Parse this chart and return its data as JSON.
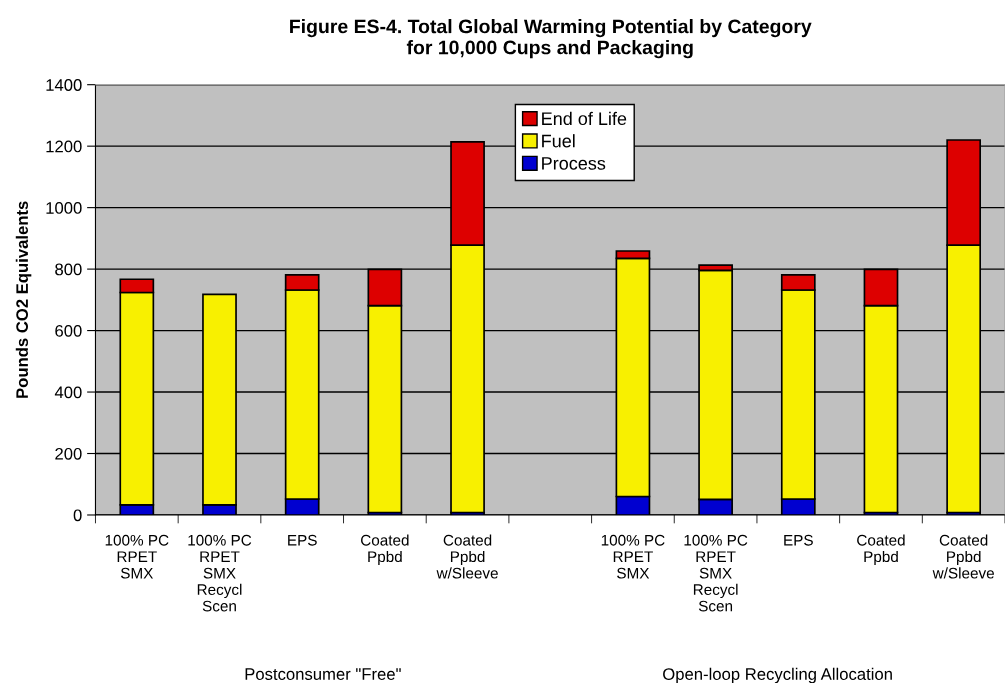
{
  "chart_data": {
    "type": "bar",
    "stacked": true,
    "title": "Figure ES-4. Total Global Warming Potential by Category\nfor 10,000 Cups and Packaging",
    "ylabel": "Pounds CO2 Equivalents",
    "categories": [
      "100% PC\nRPET\nSMX",
      "100% PC\nRPET\nSMX\nRecycl\nScen",
      "EPS",
      "Coated\nPpbd",
      "Coated\nPpbd\nw/Sleeve",
      null,
      "100% PC\nRPET\nSMX",
      "100% PC\nRPET\nSMX\nRecycl\nScen",
      "EPS",
      "Coated\nPpbd",
      "Coated\nPpbd\nw/Sleeve"
    ],
    "series": [
      {
        "name": "Process",
        "color": "#0000d0",
        "values": [
          33,
          33,
          52,
          8,
          8,
          null,
          60,
          51,
          52,
          8,
          8
        ]
      },
      {
        "name": "Fuel",
        "color": "#f8f000",
        "values": [
          691,
          685,
          680,
          673,
          870,
          null,
          775,
          745,
          680,
          673,
          870
        ]
      },
      {
        "name": "End of Life",
        "color": "#dd0000",
        "values": [
          43,
          null,
          49,
          118,
          336,
          null,
          24,
          17,
          49,
          118,
          342
        ]
      }
    ],
    "ylim": [
      0,
      1400
    ],
    "yticks": [
      0,
      200,
      400,
      600,
      800,
      1000,
      1200,
      1400
    ],
    "grid": "y",
    "legend": "top",
    "annotations": [
      "Postconsumer \"Free\"",
      "Open-loop Recycling Allocation"
    ]
  }
}
